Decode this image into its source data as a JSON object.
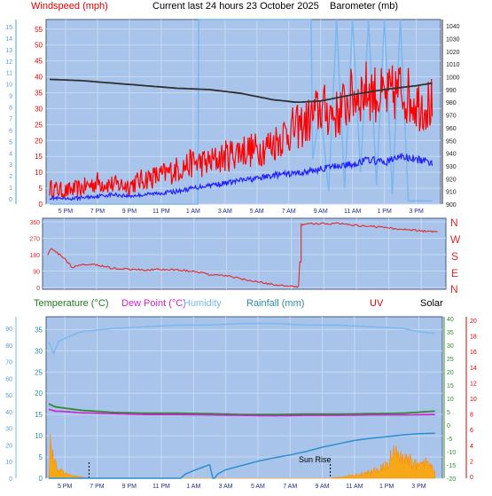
{
  "header": {
    "left": "Windspeed (mph)",
    "center": "Current last 24 hours 23 October 2025",
    "right": "Barometer (mb)"
  },
  "middle": {
    "compass_labels": [
      "N",
      "W",
      "S",
      "E",
      "N"
    ]
  },
  "bottom_header": {
    "temperature": "Temperature (°C)",
    "dew_point": "Dew Point (°C)",
    "humidity": "Humidity",
    "rainfall": "Rainfall (mm)",
    "uv": "UV",
    "solar": "Solar"
  },
  "sunrise_label": "Sun Rise",
  "colors": {
    "panel_bg": "#a9c4ea",
    "grid": "#c7d8f1",
    "wind": "#ff0000",
    "wind_avg": "#2020ff",
    "pressure": "#303030",
    "humidity_line": "#7ab8f0",
    "wind_dir": "#e02a2a",
    "temperature": "#2e8b2e",
    "dew_point": "#d020d0",
    "rain": "#2a8ed0",
    "solar": "#ffa500"
  },
  "chart_data": [
    {
      "type": "line",
      "x_tick_labels": [
        "5 PM",
        "7 PM",
        "9 PM",
        "11 PM",
        "1 AM",
        "3 AM",
        "5 AM",
        "7 AM",
        "9 AM",
        "11 AM",
        "1 PM",
        "3 PM"
      ],
      "x_range_hours": [
        0,
        24.3
      ],
      "y_left_ticks": [
        0,
        5,
        10,
        15,
        20,
        25,
        30,
        35,
        40,
        45,
        50,
        55
      ],
      "y_left_range": [
        0,
        58
      ],
      "y_right_ticks": [
        900,
        910,
        920,
        930,
        940,
        950,
        960,
        970,
        980,
        990,
        1000,
        1010,
        1020,
        1030,
        1040
      ],
      "y_right_range": [
        900,
        1045
      ],
      "y_far_left_ticks": [
        0,
        1,
        2,
        3,
        4,
        5,
        6,
        7,
        8,
        9,
        10,
        11,
        12,
        13,
        14,
        15
      ],
      "series": [
        {
          "key": "barometer",
          "axis": "right",
          "x": [
            0,
            2,
            4,
            6,
            8,
            10,
            12,
            14,
            15.5,
            17,
            19,
            21,
            23,
            24
          ],
          "values": [
            998,
            997,
            995,
            993,
            991,
            990,
            987,
            982,
            980,
            981,
            986,
            990,
            993,
            995
          ]
        },
        {
          "key": "gust",
          "axis": "left",
          "x": [
            0,
            1,
            2,
            3,
            4,
            5,
            6,
            7,
            8,
            9,
            10,
            11,
            12,
            13,
            14,
            15,
            16,
            17,
            18,
            19,
            20,
            21,
            22,
            23,
            24
          ],
          "values": [
            5,
            4,
            5,
            7,
            6,
            6,
            8,
            9,
            11,
            13,
            13,
            15,
            17,
            17,
            19,
            23,
            25,
            30,
            28,
            34,
            36,
            33,
            36,
            32,
            31
          ]
        },
        {
          "key": "average",
          "axis": "left",
          "x": [
            0,
            1,
            2,
            3,
            4,
            5,
            6,
            7,
            8,
            9,
            10,
            11,
            12,
            13,
            14,
            15,
            16,
            17,
            18,
            19,
            20,
            21,
            22,
            23,
            24
          ],
          "values": [
            2,
            1.5,
            2,
            2.5,
            3,
            2.5,
            3,
            3.5,
            4,
            5,
            6,
            6.5,
            7.5,
            8,
            9,
            9.5,
            10,
            11,
            12,
            12.5,
            14,
            13,
            15,
            14,
            13
          ]
        },
        {
          "key": "step",
          "axis": "left",
          "x": [
            0,
            9.3,
            9.35,
            16.4,
            16.5,
            17,
            17.5,
            18,
            18.5,
            19,
            19.5,
            20,
            20.5,
            21,
            21.5,
            22,
            22.5,
            23,
            24
          ],
          "values": [
            0,
            0,
            58,
            58,
            14,
            30,
            4,
            58,
            5,
            58,
            10,
            58,
            6,
            58,
            3,
            58,
            1,
            1,
            1
          ]
        }
      ]
    },
    {
      "type": "line",
      "x_tick_labels": [
        "5 PM",
        "7 PM",
        "9 PM",
        "11 PM",
        "1 AM",
        "3 AM",
        "5 AM",
        "7 AM",
        "9 AM",
        "11 AM",
        "1 PM",
        "3 PM"
      ],
      "y_ticks": [
        0,
        90,
        180,
        270,
        360
      ],
      "y_range": [
        0,
        360
      ],
      "series": [
        {
          "key": "wind_direction",
          "x": [
            0,
            0.2,
            1,
            1.5,
            2,
            3,
            4,
            5,
            6,
            7,
            8,
            9,
            10,
            11,
            12,
            13,
            14,
            15,
            15.5,
            15.55,
            16,
            17,
            18,
            19,
            20,
            21,
            22,
            23,
            24
          ],
          "values": [
            180,
            215,
            160,
            110,
            125,
            125,
            105,
            100,
            95,
            100,
            95,
            90,
            70,
            65,
            45,
            30,
            15,
            5,
            3,
            345,
            350,
            350,
            350,
            340,
            335,
            325,
            320,
            310,
            305
          ]
        }
      ]
    },
    {
      "type": "line",
      "x_tick_labels": [
        "5 PM",
        "7 PM",
        "9 PM",
        "11 PM",
        "1 AM",
        "3 AM",
        "5 AM",
        "7 AM",
        "9 AM",
        "11 AM",
        "1 PM",
        "3 PM"
      ],
      "y_left_ticks": [
        0,
        5,
        10,
        15,
        20,
        25,
        30,
        35
      ],
      "y_left_range": [
        0,
        38
      ],
      "y_humidity_ticks": [
        0,
        10,
        20,
        30,
        40,
        50,
        60,
        70,
        80,
        90
      ],
      "y_right_ticks": [
        -20,
        -15,
        -10,
        -5,
        0,
        5,
        10,
        15,
        20,
        25,
        30,
        35,
        40
      ],
      "y_right_range": [
        -20,
        40
      ],
      "y_far_right_ticks": [
        0,
        2,
        4,
        6,
        8,
        10,
        12,
        14,
        16,
        18,
        20
      ],
      "sunrise_hour": 17.5,
      "marker_hour": 2.5,
      "series": [
        {
          "key": "humidity",
          "axis": "humidity",
          "x": [
            0,
            0.3,
            0.6,
            1,
            2,
            3,
            4,
            6,
            8,
            10,
            12,
            14,
            16,
            18,
            20,
            22,
            23,
            24
          ],
          "values": [
            82,
            75,
            82,
            84,
            88,
            89,
            90,
            91,
            92,
            92,
            93,
            93,
            92,
            92,
            91,
            90,
            88,
            87
          ]
        },
        {
          "key": "temperature",
          "axis": "left",
          "x": [
            0,
            0.4,
            1,
            2,
            4,
            6,
            8,
            10,
            12,
            14,
            16,
            18,
            20,
            22,
            24
          ],
          "values": [
            17.5,
            16.8,
            16.5,
            16,
            15.5,
            15.3,
            15.3,
            15.2,
            15.0,
            15.0,
            15.1,
            15.1,
            15.2,
            15.3,
            15.8
          ]
        },
        {
          "key": "dew_point",
          "axis": "left",
          "x": [
            0,
            0.4,
            1,
            2,
            4,
            6,
            8,
            10,
            12,
            14,
            16,
            18,
            20,
            22,
            24
          ],
          "values": [
            16.2,
            15.8,
            15.7,
            15.4,
            15.2,
            15.0,
            15.0,
            14.9,
            14.8,
            14.7,
            14.8,
            14.8,
            14.9,
            14.9,
            15.0
          ]
        },
        {
          "key": "rainfall",
          "axis": "left",
          "x": [
            0,
            8.2,
            8.5,
            9.0,
            9.5,
            10.0,
            10.2,
            10.3,
            10.5,
            11,
            12,
            13,
            14,
            15,
            16,
            17,
            18,
            19,
            20,
            21,
            22,
            23,
            24
          ],
          "values": [
            0,
            0,
            1,
            1.8,
            2.5,
            3.2,
            0,
            0,
            1,
            2.0,
            3.0,
            4.0,
            4.8,
            5.5,
            6.3,
            7.3,
            8.1,
            8.9,
            9.4,
            9.8,
            10.2,
            10.5,
            10.6
          ]
        },
        {
          "key": "solar",
          "axis": "left",
          "x": [
            0,
            0.1,
            0.3,
            0.6,
            1.0,
            1.5,
            2.0,
            2.5,
            17.5,
            18.5,
            19.5,
            20.5,
            21,
            21.5,
            22,
            22.5,
            23,
            23.5,
            24
          ],
          "values": [
            0,
            9,
            4,
            2,
            1,
            0.5,
            0.3,
            0,
            0,
            0.5,
            1.0,
            2.0,
            3.0,
            6.5,
            5.5,
            4.0,
            2.5,
            3.5,
            1.5
          ]
        }
      ]
    }
  ]
}
